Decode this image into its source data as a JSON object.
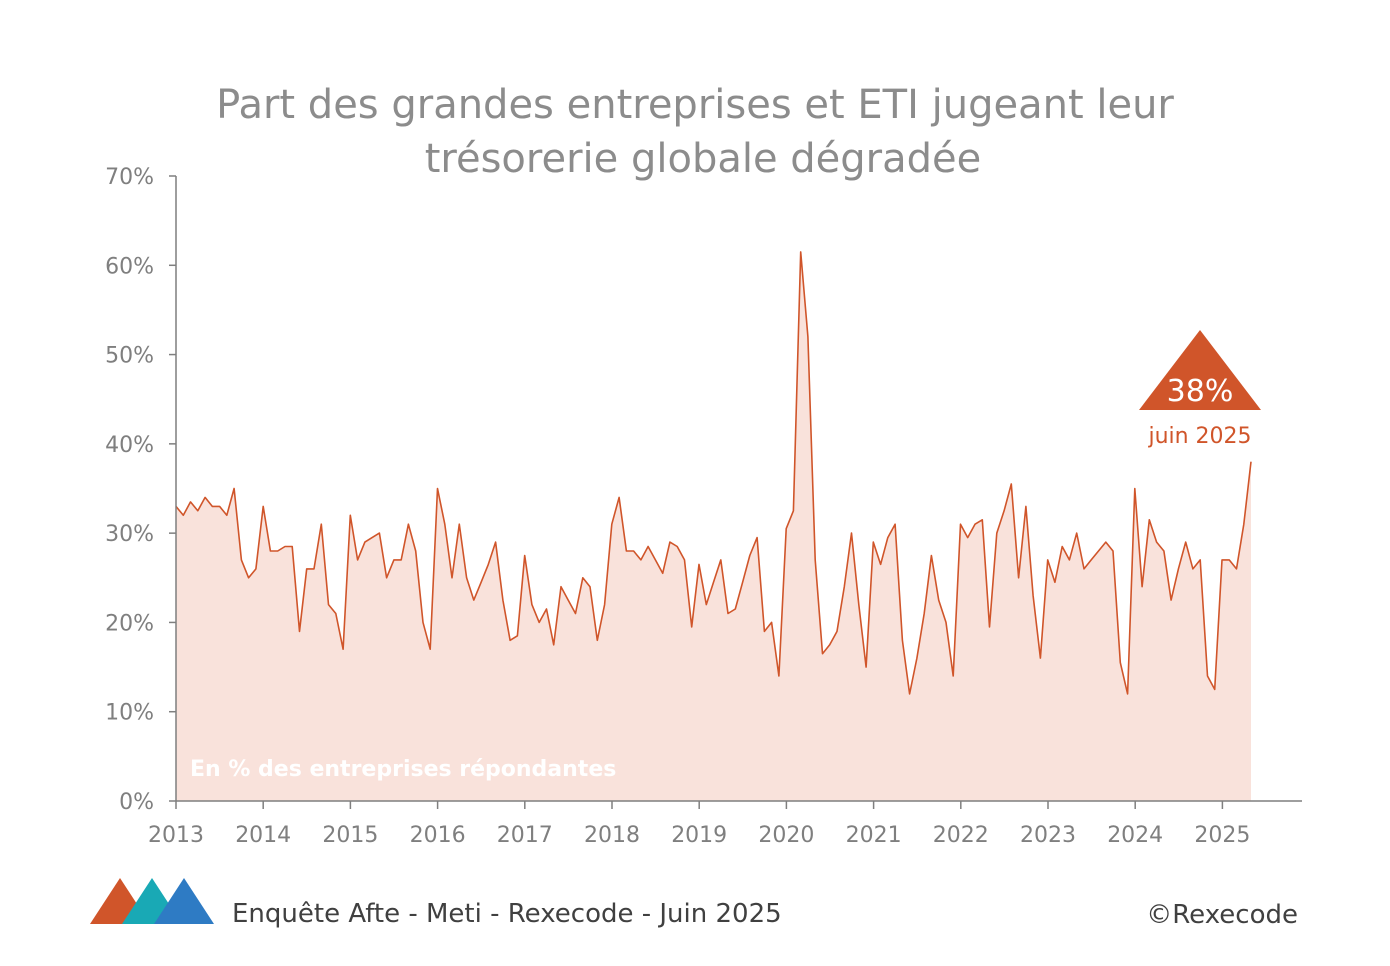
{
  "chart_data": {
    "type": "area",
    "title": "Part des grandes entreprises et ETI jugeant leur trésorerie globale dégradée",
    "title_lines": [
      "Part des grandes entreprises et ETI jugeant leur",
      "trésorerie globale dégradée"
    ],
    "xlabel": "",
    "ylabel": "",
    "ylim": [
      0,
      70
    ],
    "xlim": [
      2013,
      2026.0
    ],
    "y_ticks": [
      0,
      10,
      20,
      30,
      40,
      50,
      60,
      70
    ],
    "y_tick_labels": [
      "0%",
      "10%",
      "20%",
      "30%",
      "40%",
      "50%",
      "60%",
      "70%"
    ],
    "x_ticks": [
      2013,
      2014,
      2015,
      2016,
      2017,
      2018,
      2019,
      2020,
      2021,
      2022,
      2023,
      2024,
      2025
    ],
    "x_tick_labels": [
      "2013",
      "2014",
      "2015",
      "2016",
      "2017",
      "2018",
      "2019",
      "2020",
      "2021",
      "2022",
      "2023",
      "2024",
      "2025"
    ],
    "grid": false,
    "legend": "none",
    "series": [
      {
        "x_start": 2013.0,
        "x_step": 0.0833,
        "values": [
          33,
          32,
          33.5,
          32.5,
          34,
          33,
          33,
          32,
          35,
          27,
          25,
          26,
          33,
          28,
          28,
          28.5,
          28.5,
          19,
          26,
          26,
          31,
          22,
          21,
          17,
          32,
          27,
          29,
          29.5,
          30,
          25,
          27,
          27,
          31,
          28,
          20,
          17,
          35,
          31,
          25,
          31,
          25,
          22.5,
          24.5,
          26.5,
          29,
          22.5,
          18,
          18.5,
          27.5,
          22,
          20,
          21.5,
          17.5,
          24,
          22.5,
          21,
          25,
          24,
          18,
          22,
          31,
          34,
          28,
          28,
          27,
          28.5,
          27,
          25.5,
          29,
          28.5,
          27,
          19.5,
          26.5,
          22,
          24.5,
          27,
          21,
          21.5,
          24.5,
          27.5,
          29.5,
          19,
          20,
          14,
          30.5,
          32.5,
          61.5,
          52,
          27,
          16.5,
          17.5,
          19,
          24,
          30,
          22,
          15,
          29,
          26.5,
          29.5,
          31,
          18,
          12,
          16,
          21,
          27.5,
          22.5,
          20,
          14,
          31,
          29.5,
          31,
          31.5,
          19.5,
          30,
          32.5,
          35.5,
          25,
          33,
          23,
          16,
          27,
          24.5,
          28.5,
          27,
          30,
          26,
          27,
          28,
          29,
          28,
          15.5,
          12,
          35,
          24,
          31.5,
          29,
          28,
          22.5,
          26,
          29,
          26,
          27,
          14,
          12.5,
          27,
          27,
          26,
          31,
          38
        ]
      }
    ],
    "annotations": {
      "last_value_label": "38%",
      "last_date_label": "juin 2025",
      "inner_note": "En % des entreprises répondantes"
    },
    "colors": {
      "line": "#d0552a",
      "fill": "#f9e2db",
      "callout": "#d0552a",
      "axis": "#7f7f7f"
    }
  },
  "footer": {
    "source": "Enquête Afte - Meti - Rexecode  - Juin 2025",
    "copyright": "©Rexecode",
    "logo_colors": [
      "#d0552a",
      "#19a9b5",
      "#2e7bc4"
    ]
  }
}
